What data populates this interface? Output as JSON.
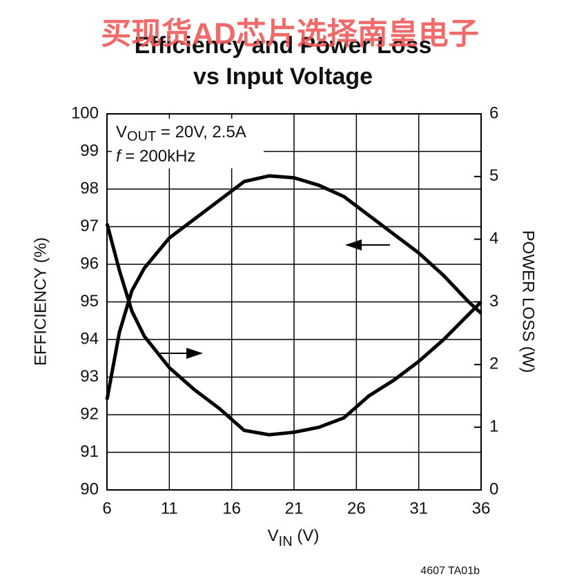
{
  "watermark": "买现货AD芯片选择南皇电子",
  "chart_data": {
    "type": "line",
    "title": [
      "Efficiency and Power Loss",
      "vs Input Voltage"
    ],
    "annotation": {
      "v": "V",
      "sub": "OUT",
      "rest": " = 20V, 2.5A",
      "f": "f",
      "frest": " =  200kHz"
    },
    "x_label": {
      "main": "V",
      "sub": "IN",
      "rest": " (V)"
    },
    "y_label": "EFFICIENCY (%)",
    "y2_label": "POWER LOSS (W)",
    "footnote": "4607 TA01b",
    "x": [
      6,
      7,
      8,
      9,
      11,
      13,
      15,
      17,
      19,
      21,
      23,
      25,
      27,
      29,
      31,
      33,
      35,
      36
    ],
    "series": [
      {
        "name": "Efficiency",
        "color": "#000000",
        "values": [
          92.4,
          94.2,
          95.3,
          95.9,
          96.7,
          97.2,
          97.7,
          98.2,
          98.35,
          98.3,
          98.1,
          97.8,
          97.3,
          96.8,
          96.3,
          95.7,
          95.0,
          94.7
        ]
      },
      {
        "name": "Power Loss",
        "color": "#000000",
        "axis": "y2",
        "values": [
          4.25,
          3.5,
          2.85,
          2.45,
          1.95,
          1.6,
          1.3,
          0.95,
          0.88,
          0.92,
          1.0,
          1.15,
          1.5,
          1.75,
          2.05,
          2.4,
          2.8,
          3.0
        ]
      }
    ],
    "xlim": [
      6,
      36
    ],
    "xticks": [
      6,
      11,
      16,
      21,
      26,
      31,
      36
    ],
    "ylim": [
      90,
      100
    ],
    "yticks": [
      90,
      91,
      92,
      93,
      94,
      95,
      96,
      97,
      98,
      99,
      100
    ],
    "y2lim": [
      0,
      6
    ],
    "y2ticks": [
      0,
      1,
      2,
      3,
      4,
      5,
      6
    ],
    "grid": true
  }
}
